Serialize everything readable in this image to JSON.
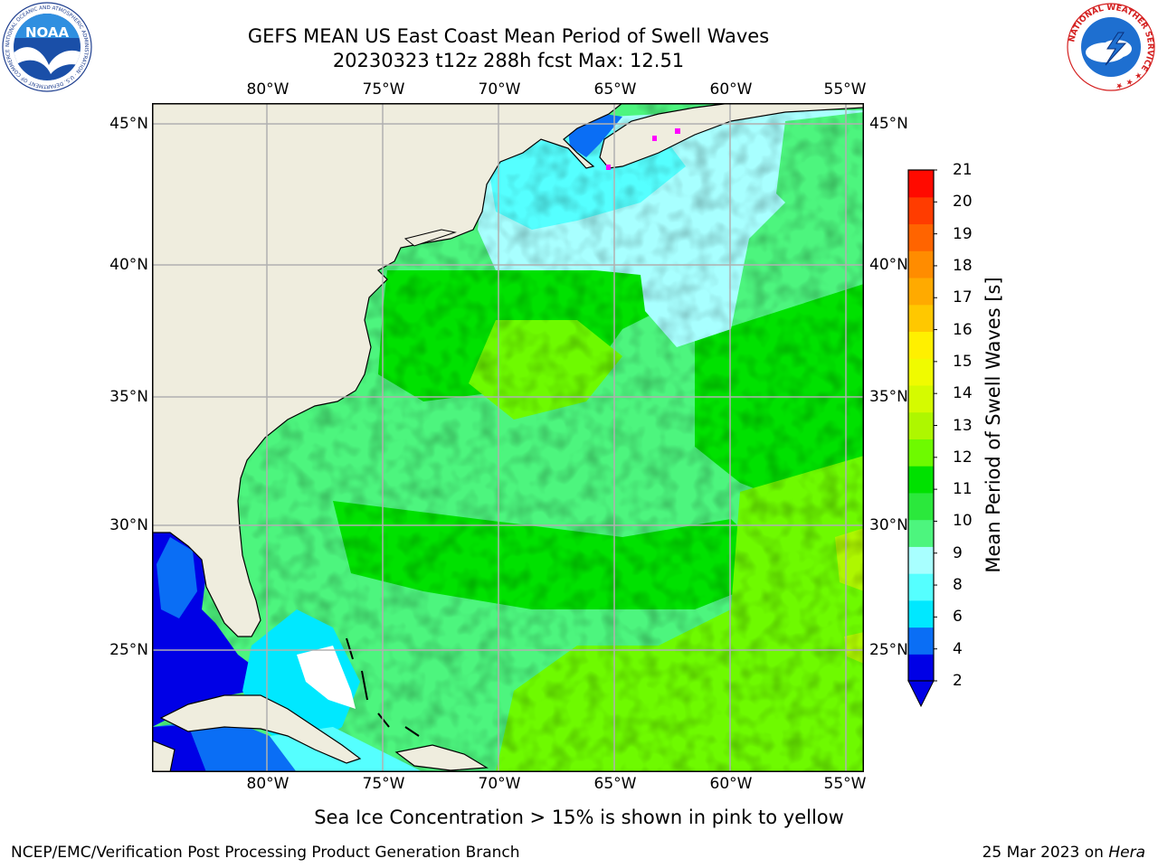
{
  "title_line1": "GEFS MEAN US East Coast Mean Period of Swell Waves",
  "title_line2": "20230323 t12z 288h fcst   Max: 12.51",
  "map": {
    "lon_ticks": [
      "80°W",
      "75°W",
      "70°W",
      "65°W",
      "60°W",
      "55°W"
    ],
    "lat_ticks": [
      "45°N",
      "40°N",
      "35°N",
      "30°N",
      "25°N"
    ],
    "colors": {
      "land": "#efedde",
      "gridline": "#b0b0b0",
      "sea_ice": "#ff00ff",
      "no_data": "#ffffff"
    }
  },
  "colorbar": {
    "label": "Mean Period of Swell Waves [s]",
    "ticks": [
      "21",
      "20",
      "19",
      "18",
      "17",
      "16",
      "15",
      "14",
      "13",
      "12",
      "11",
      "10",
      "9",
      "8",
      "6",
      "4",
      "2"
    ],
    "colors": [
      "#0000e6",
      "#0a6ef5",
      "#00e8ff",
      "#55ffff",
      "#a8ffff",
      "#4df57e",
      "#2be83c",
      "#00e100",
      "#6efa00",
      "#aef700",
      "#d5fb00",
      "#f0fb00",
      "#fff000",
      "#ffc800",
      "#ffaa00",
      "#ff8c00",
      "#ff6400",
      "#ff3c00",
      "#ff0a00"
    ]
  },
  "logos": {
    "noaa": {
      "ring_text": "NATIONAL OCEANIC AND ATMOSPHERIC ADMINISTRATION · U.S. DEPARTMENT OF COMMERCE ·",
      "center_text": "NOAA"
    },
    "nws": {
      "ring_text": "NATIONAL WEATHER SERVICE ★ ★ ★"
    }
  },
  "note": "Sea Ice Concentration > 15% is shown in pink to yellow",
  "footer_left": "NCEP/EMC/Verification Post Processing Product Generation Branch",
  "footer_date": "25 Mar 2023 on ",
  "footer_host": "Hera"
}
